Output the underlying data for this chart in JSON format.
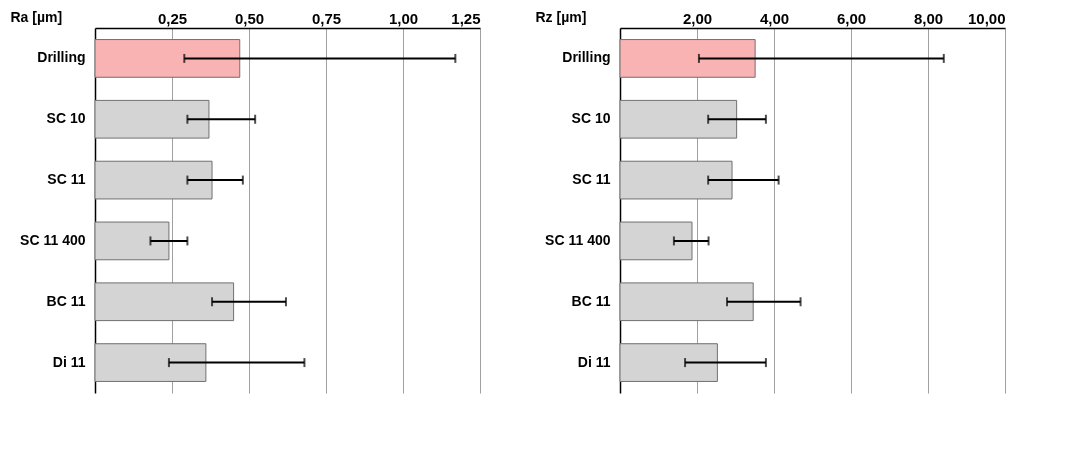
{
  "chart_data": [
    {
      "type": "bar",
      "orientation": "horizontal",
      "xlabel": "Ra [µm]",
      "categories": [
        "Drilling",
        "SC 10",
        "SC 11",
        "SC 11 400",
        "BC 11",
        "Di 11"
      ],
      "values": [
        0.47,
        0.37,
        0.38,
        0.24,
        0.45,
        0.36
      ],
      "errors": [
        [
          0.29,
          1.17
        ],
        [
          0.3,
          0.52
        ],
        [
          0.3,
          0.48
        ],
        [
          0.18,
          0.3
        ],
        [
          0.38,
          0.62
        ],
        [
          0.24,
          0.68
        ]
      ],
      "colors": [
        "#f9b3b3",
        "#d4d4d4",
        "#d4d4d4",
        "#d4d4d4",
        "#d4d4d4",
        "#d4d4d4"
      ],
      "xlim": [
        0,
        1.25
      ],
      "xticks": [
        {
          "value": 0.25,
          "label": "0,25"
        },
        {
          "value": 0.5,
          "label": "0,50"
        },
        {
          "value": 0.75,
          "label": "0,75"
        },
        {
          "value": 1.0,
          "label": "1,00"
        },
        {
          "value": 1.25,
          "label": "1,25"
        }
      ],
      "grid": "x"
    },
    {
      "type": "bar",
      "orientation": "horizontal",
      "xlabel": "Rz [µm]",
      "categories": [
        "Drilling",
        "SC 10",
        "SC 11",
        "SC 11 400",
        "BC 11",
        "Di 11"
      ],
      "values": [
        3.51,
        3.03,
        2.91,
        1.87,
        3.46,
        2.53
      ],
      "errors": [
        [
          2.05,
          8.41
        ],
        [
          2.29,
          3.79
        ],
        [
          2.29,
          4.12
        ],
        [
          1.4,
          2.3
        ],
        [
          2.78,
          4.69
        ],
        [
          1.69,
          3.79
        ]
      ],
      "colors": [
        "#f9b3b3",
        "#d4d4d4",
        "#d4d4d4",
        "#d4d4d4",
        "#d4d4d4",
        "#d4d4d4"
      ],
      "xlim": [
        0,
        10
      ],
      "xticks": [
        {
          "value": 2,
          "label": "2,00"
        },
        {
          "value": 4,
          "label": "4,00"
        },
        {
          "value": 6,
          "label": "6,00"
        },
        {
          "value": 8,
          "label": "8,00"
        },
        {
          "value": 10,
          "label": "10,00"
        }
      ],
      "grid": "x"
    }
  ]
}
